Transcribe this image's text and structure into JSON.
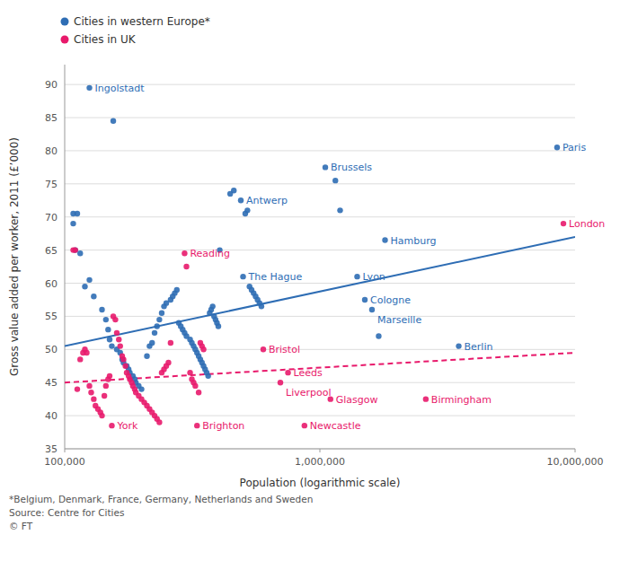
{
  "chart_data": {
    "type": "scatter",
    "xlabel": "Population (logarithmic scale)",
    "ylabel": "Gross value added per worker, 2011 (£’000)",
    "footnote": "*Belgium, Denmark, France, Germany, Netherlands and Sweden\nSource: Centre for Cities\n© FT",
    "log": "x",
    "grid": true,
    "legend": "top-left",
    "xlim": [
      100000,
      10000000
    ],
    "ylim": [
      35,
      93
    ],
    "xticks": [
      {
        "value": 100000,
        "label": "100,000"
      },
      {
        "value": 1000000,
        "label": "1,000,000"
      },
      {
        "value": 10000000,
        "label": "10,000,000"
      }
    ],
    "yticks": [
      35,
      40,
      45,
      50,
      55,
      60,
      65,
      70,
      75,
      80,
      85,
      90
    ],
    "series": [
      {
        "name": "Cities in western Europe*",
        "type": "scatter",
        "marker": "circle",
        "color": "#2e6db4",
        "x": [
          125000,
          155000,
          108000,
          112000,
          108000,
          110000,
          115000,
          120000,
          125000,
          130000,
          140000,
          145000,
          148000,
          150000,
          153000,
          160000,
          165000,
          168000,
          170000,
          175000,
          178000,
          180000,
          185000,
          188000,
          190000,
          195000,
          200000,
          210000,
          215000,
          220000,
          225000,
          230000,
          235000,
          240000,
          245000,
          250000,
          260000,
          265000,
          270000,
          275000,
          280000,
          285000,
          290000,
          295000,
          300000,
          310000,
          315000,
          320000,
          325000,
          330000,
          335000,
          340000,
          345000,
          350000,
          355000,
          360000,
          365000,
          370000,
          375000,
          380000,
          385000,
          390000,
          395000,
          400000,
          405000,
          500000,
          490000,
          510000,
          520000,
          530000,
          540000,
          550000,
          560000,
          570000,
          580000,
          590000,
          460000,
          445000,
          1050000,
          1150000,
          1200000,
          1400000,
          1500000,
          1600000,
          1700000,
          1800000,
          3500000,
          8500000
        ],
        "values": [
          89.5,
          84.5,
          70.5,
          70.5,
          69.0,
          65.0,
          64.5,
          59.5,
          60.5,
          58.0,
          56.0,
          54.5,
          53.0,
          51.5,
          50.5,
          50.0,
          49.5,
          48.5,
          48.0,
          47.5,
          47.0,
          46.5,
          46.0,
          45.5,
          45.0,
          44.5,
          44.0,
          49.0,
          50.5,
          51.0,
          52.5,
          53.5,
          54.5,
          55.5,
          56.5,
          57.0,
          57.5,
          58.0,
          58.5,
          59.0,
          54.0,
          53.5,
          53.0,
          52.5,
          52.0,
          51.5,
          51.0,
          50.5,
          50.0,
          49.5,
          49.0,
          48.5,
          48.0,
          47.5,
          47.0,
          46.5,
          46.0,
          55.5,
          56.0,
          56.5,
          55.0,
          54.5,
          54.0,
          53.5,
          65.0,
          61.0,
          72.5,
          70.5,
          71.0,
          59.5,
          59.0,
          58.5,
          58.0,
          57.5,
          57.0,
          56.5,
          74.0,
          73.5,
          77.5,
          75.5,
          71.0,
          61.0,
          57.5,
          56.0,
          52.0,
          66.5,
          50.5,
          80.5
        ],
        "labels": [
          "Ingolstadt",
          null,
          null,
          null,
          null,
          null,
          null,
          null,
          null,
          null,
          null,
          null,
          null,
          null,
          null,
          null,
          null,
          null,
          null,
          null,
          null,
          null,
          null,
          null,
          null,
          null,
          null,
          null,
          null,
          null,
          null,
          null,
          null,
          null,
          null,
          null,
          null,
          null,
          null,
          null,
          null,
          null,
          null,
          null,
          null,
          null,
          null,
          null,
          null,
          null,
          null,
          null,
          null,
          null,
          null,
          null,
          null,
          null,
          null,
          null,
          null,
          null,
          null,
          null,
          null,
          "The Hague",
          "Antwerp",
          null,
          null,
          null,
          null,
          null,
          null,
          null,
          null,
          null,
          null,
          null,
          "Brussels",
          null,
          null,
          "Lyon",
          "Cologne",
          "Marseille",
          null,
          "Hamburg",
          "Berlin",
          "Paris"
        ]
      },
      {
        "name": "Cities in UK",
        "type": "scatter",
        "marker": "circle",
        "color": "#e8196b",
        "x": [
          153000,
          108000,
          110000,
          112000,
          115000,
          118000,
          120000,
          122000,
          125000,
          127000,
          130000,
          132000,
          135000,
          138000,
          140000,
          143000,
          145000,
          148000,
          150000,
          155000,
          158000,
          160000,
          163000,
          165000,
          168000,
          170000,
          173000,
          175000,
          178000,
          180000,
          183000,
          185000,
          188000,
          190000,
          195000,
          200000,
          205000,
          210000,
          215000,
          220000,
          225000,
          230000,
          235000,
          240000,
          245000,
          250000,
          255000,
          260000,
          295000,
          300000,
          310000,
          315000,
          320000,
          325000,
          335000,
          340000,
          345000,
          350000,
          330000,
          600000,
          750000,
          700000,
          1100000,
          870000,
          2600000,
          9000000
        ],
        "values": [
          38.5,
          65.0,
          65.0,
          44.0,
          48.5,
          49.5,
          50.0,
          49.5,
          44.5,
          43.5,
          42.5,
          41.5,
          41.0,
          40.5,
          40.0,
          43.0,
          44.5,
          45.5,
          46.0,
          55.0,
          54.5,
          52.5,
          51.5,
          50.5,
          49.0,
          48.5,
          47.5,
          46.5,
          46.0,
          45.5,
          45.0,
          44.5,
          44.0,
          43.5,
          43.0,
          42.5,
          42.0,
          41.5,
          41.0,
          40.5,
          40.0,
          39.5,
          39.0,
          46.5,
          47.0,
          47.5,
          48.0,
          51.0,
          64.5,
          62.5,
          46.5,
          45.5,
          45.0,
          44.5,
          43.5,
          51.0,
          50.5,
          50.0,
          38.5,
          50.0,
          46.5,
          45.0,
          42.5,
          38.5,
          42.5,
          69.0
        ],
        "labels": [
          "York",
          null,
          null,
          null,
          null,
          null,
          null,
          null,
          null,
          null,
          null,
          null,
          null,
          null,
          null,
          null,
          null,
          null,
          null,
          null,
          null,
          null,
          null,
          null,
          null,
          null,
          null,
          null,
          null,
          null,
          null,
          null,
          null,
          null,
          null,
          null,
          null,
          null,
          null,
          null,
          null,
          null,
          null,
          null,
          null,
          null,
          null,
          null,
          "Reading",
          null,
          null,
          null,
          null,
          null,
          null,
          null,
          null,
          null,
          "Brighton",
          "Bristol",
          "Leeds",
          "Liverpool",
          "Glasgow",
          "Newcastle",
          "Birmingham",
          "London"
        ]
      },
      {
        "type": "line",
        "line_style": "solid",
        "color": "#2e6db4",
        "x": [
          100000,
          10000000
        ],
        "values": [
          50.5,
          67.0
        ]
      },
      {
        "type": "line",
        "line_style": "dashed",
        "color": "#e8196b",
        "x": [
          100000,
          10000000
        ],
        "values": [
          45.0,
          49.5
        ]
      }
    ]
  }
}
